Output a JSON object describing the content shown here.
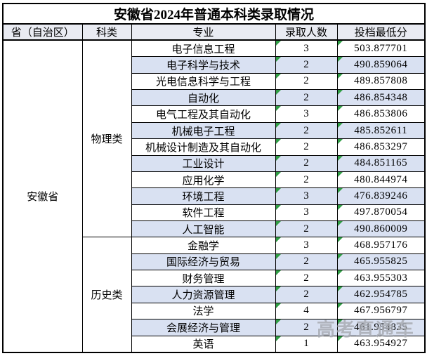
{
  "title": "安徽省2024年普通本科类录取情况",
  "watermark": "高考直通车",
  "colors": {
    "row_alt_fill": "#d9e1f2",
    "header_fill": "#e9ebf2",
    "border": "#000000",
    "flag_triangle_green": "#2f9e44",
    "watermark_gray": "#868a94"
  },
  "table": {
    "headers": {
      "province": "省（自治区）",
      "category": "科类",
      "major": "专业",
      "count": "录取人数",
      "score": "投档最低分"
    },
    "province": "安徽省",
    "categories": [
      {
        "label": "物理类",
        "row_span": 12
      },
      {
        "label": "历史类",
        "row_span": 7
      }
    ],
    "rows": [
      {
        "category": "物理类",
        "major": "电子信息工程",
        "count": "3",
        "score": "503.877701"
      },
      {
        "category": "物理类",
        "major": "电子科学与技术",
        "count": "2",
        "score": "490.859064"
      },
      {
        "category": "物理类",
        "major": "光电信息科学与工程",
        "count": "2",
        "score": "489.857808"
      },
      {
        "category": "物理类",
        "major": "自动化",
        "count": "2",
        "score": "486.854348"
      },
      {
        "category": "物理类",
        "major": "电气工程及其自动化",
        "count": "3",
        "score": "486.853806"
      },
      {
        "category": "物理类",
        "major": "机械电子工程",
        "count": "2",
        "score": "485.852611"
      },
      {
        "category": "物理类",
        "major": "机械设计制造及其自动化",
        "count": "2",
        "score": "486.853297"
      },
      {
        "category": "物理类",
        "major": "工业设计",
        "count": "2",
        "score": "484.851165"
      },
      {
        "category": "物理类",
        "major": "应用化学",
        "count": "2",
        "score": "480.844974"
      },
      {
        "category": "物理类",
        "major": "环境工程",
        "count": "3",
        "score": "476.839246"
      },
      {
        "category": "物理类",
        "major": "软件工程",
        "count": "3",
        "score": "497.870054"
      },
      {
        "category": "物理类",
        "major": "人工智能",
        "count": "2",
        "score": "490.860009"
      },
      {
        "category": "历史类",
        "major": "金融学",
        "count": "3",
        "score": "468.957176"
      },
      {
        "category": "历史类",
        "major": "国际经济与贸易",
        "count": "2",
        "score": "465.955825"
      },
      {
        "category": "历史类",
        "major": "财务管理",
        "count": "2",
        "score": "463.955303"
      },
      {
        "category": "历史类",
        "major": "人力资源管理",
        "count": "2",
        "score": "462.954785"
      },
      {
        "category": "历史类",
        "major": "法学",
        "count": "4",
        "score": "467.956797"
      },
      {
        "category": "历史类",
        "major": "会展经济与管理",
        "count": "2",
        "score": "461.954835"
      },
      {
        "category": "历史类",
        "major": "英语",
        "count": "1",
        "score": "463.954927"
      }
    ]
  }
}
